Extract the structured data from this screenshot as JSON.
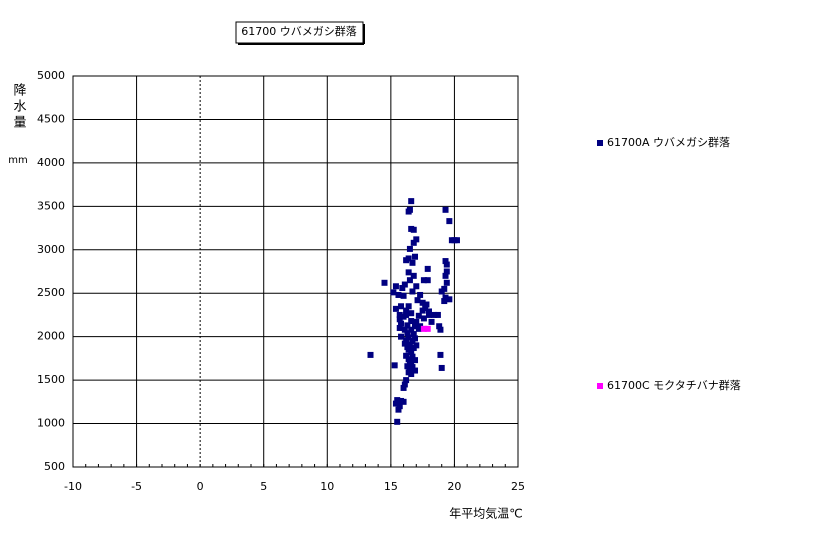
{
  "chart_data": {
    "type": "scatter",
    "title": "61700 ウバメガシ群落",
    "x_label": "年平均気温℃",
    "y_label": "降水量",
    "y_unit": "mm",
    "xlim": [
      -10,
      25
    ],
    "xticks": [
      -10,
      -5,
      0,
      5,
      10,
      15,
      20,
      25
    ],
    "ylim": [
      500,
      5000
    ],
    "yticks": [
      500,
      1000,
      1500,
      2000,
      2500,
      3000,
      3500,
      4000,
      4500,
      5000
    ],
    "grid": true,
    "legend": "right",
    "series": [
      {
        "name": "61700A ウバメガシ群落",
        "color": "#000080",
        "x": [
          16.6,
          16.5,
          16.4,
          19.3,
          19.6,
          20,
          20.2,
          19.8,
          16.6,
          16.8,
          17.0,
          16.8,
          16.5,
          16.9,
          16.4,
          16.2,
          16.7,
          19.3,
          19.4,
          19.4,
          19.3,
          17.9,
          16.4,
          16.8,
          16.5,
          17.6,
          17.9,
          19.4,
          14.5,
          15.4,
          15.9,
          16.1,
          17.0,
          19.2,
          19.0,
          16.7,
          15.2,
          15.6,
          16.0,
          17.3,
          19.3,
          19.6,
          19.2,
          17.1,
          17.5,
          17.8,
          15.8,
          16.4,
          17.7,
          15.4,
          16.2,
          17.5,
          18.0,
          16.6,
          15.7,
          16.2,
          17.2,
          18.0,
          18.4,
          18.7,
          16.0,
          17.6,
          15.7,
          16.6,
          17.0,
          18.2,
          15.8,
          16.3,
          16.9,
          17.3,
          18.8,
          15.7,
          16.1,
          16.6,
          17.2,
          18.9,
          16.3,
          16.8,
          15.8,
          16.4,
          16.9,
          16.2,
          16.7,
          16.1,
          16.5,
          17.0,
          16.3,
          16.8,
          16.4,
          16.6,
          13.4,
          18.9,
          16.2,
          16.7,
          16.4,
          16.9,
          16.5,
          16.6,
          15.3,
          16.3,
          16.7,
          19.0,
          16.5,
          16.9,
          16.4,
          16.6,
          16.2,
          16.1,
          16.0,
          15.5,
          15.8,
          16.0,
          15.4,
          15.7,
          15.6,
          15.5
        ],
        "values": [
          3560,
          3460,
          3440,
          3460,
          3330,
          3110,
          3110,
          3110,
          3240,
          3230,
          3120,
          3080,
          3010,
          2920,
          2900,
          2880,
          2850,
          2870,
          2830,
          2750,
          2700,
          2780,
          2740,
          2700,
          2650,
          2650,
          2650,
          2620,
          2620,
          2580,
          2560,
          2600,
          2580,
          2550,
          2520,
          2520,
          2510,
          2480,
          2470,
          2480,
          2450,
          2430,
          2410,
          2420,
          2390,
          2370,
          2350,
          2350,
          2330,
          2320,
          2300,
          2300,
          2290,
          2270,
          2250,
          2250,
          2240,
          2250,
          2250,
          2250,
          2230,
          2210,
          2200,
          2180,
          2170,
          2170,
          2150,
          2130,
          2120,
          2120,
          2120,
          2100,
          2080,
          2080,
          2090,
          2080,
          2040,
          2030,
          2000,
          1990,
          1980,
          1960,
          1950,
          1920,
          1910,
          1900,
          1880,
          1870,
          1850,
          1820,
          1790,
          1790,
          1780,
          1770,
          1740,
          1730,
          1710,
          1690,
          1670,
          1660,
          1650,
          1640,
          1620,
          1610,
          1590,
          1570,
          1500,
          1450,
          1410,
          1270,
          1260,
          1250,
          1230,
          1200,
          1160,
          1020
        ]
      },
      {
        "name": "61700C モクタチバナ群落",
        "color": "#ff00ff",
        "x": [
          17.6,
          17.9
        ],
        "values": [
          2090,
          2090
        ]
      }
    ]
  }
}
